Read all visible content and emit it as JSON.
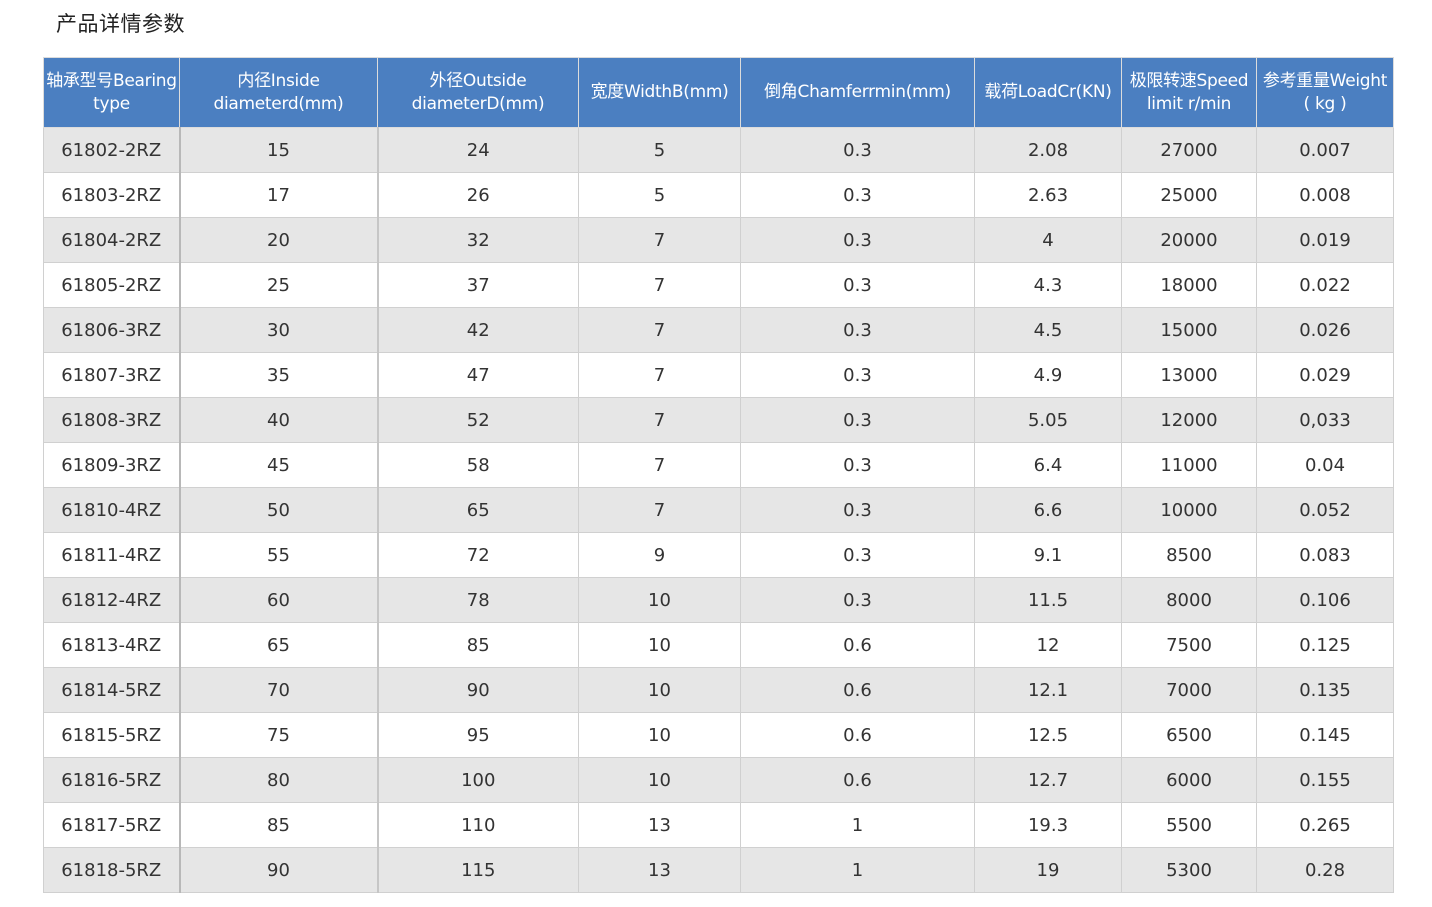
{
  "title": "产品详情参数",
  "headers": [
    "轴承型号Bearing\ntype",
    "内径Inside\ndiameterd(mm)",
    "外径Outside\ndiameterD(mm)",
    "宽度WidthB(mm)",
    "倒角Chamferrmin(mm)",
    "载荷LoadCr(KN)",
    "极限转速Speed\nlimit r/min",
    "参考重量Weight\n( kg )"
  ],
  "rows": [
    [
      "61802-2RZ",
      "15",
      "24",
      "5",
      "0.3",
      "2.08",
      "27000",
      "0.007"
    ],
    [
      "61803-2RZ",
      "17",
      "26",
      "5",
      "0.3",
      "2.63",
      "25000",
      "0.008"
    ],
    [
      "61804-2RZ",
      "20",
      "32",
      "7",
      "0.3",
      "4",
      "20000",
      "0.019"
    ],
    [
      "61805-2RZ",
      "25",
      "37",
      "7",
      "0.3",
      "4.3",
      "18000",
      "0.022"
    ],
    [
      "61806-3RZ",
      "30",
      "42",
      "7",
      "0.3",
      "4.5",
      "15000",
      "0.026"
    ],
    [
      "61807-3RZ",
      "35",
      "47",
      "7",
      "0.3",
      "4.9",
      "13000",
      "0.029"
    ],
    [
      "61808-3RZ",
      "40",
      "52",
      "7",
      "0.3",
      "5.05",
      "12000",
      "0,033"
    ],
    [
      "61809-3RZ",
      "45",
      "58",
      "7",
      "0.3",
      "6.4",
      "11000",
      "0.04"
    ],
    [
      "61810-4RZ",
      "50",
      "65",
      "7",
      "0.3",
      "6.6",
      "10000",
      "0.052"
    ],
    [
      "61811-4RZ",
      "55",
      "72",
      "9",
      "0.3",
      "9.1",
      "8500",
      "0.083"
    ],
    [
      "61812-4RZ",
      "60",
      "78",
      "10",
      "0.3",
      "11.5",
      "8000",
      "0.106"
    ],
    [
      "61813-4RZ",
      "65",
      "85",
      "10",
      "0.6",
      "12",
      "7500",
      "0.125"
    ],
    [
      "61814-5RZ",
      "70",
      "90",
      "10",
      "0.6",
      "12.1",
      "7000",
      "0.135"
    ],
    [
      "61815-5RZ",
      "75",
      "95",
      "10",
      "0.6",
      "12.5",
      "6500",
      "0.145"
    ],
    [
      "61816-5RZ",
      "80",
      "100",
      "10",
      "0.6",
      "12.7",
      "6000",
      "0.155"
    ],
    [
      "61817-5RZ",
      "85",
      "110",
      "13",
      "1",
      "19.3",
      "5500",
      "0.265"
    ],
    [
      "61818-5RZ",
      "90",
      "115",
      "13",
      "1",
      "19",
      "5300",
      "0.28"
    ]
  ],
  "colors": {
    "header_bg": "#4b7fc1",
    "header_text": "#ffffff",
    "row_alt_bg": "#e6e6e6",
    "row_bg": "#ffffff"
  }
}
